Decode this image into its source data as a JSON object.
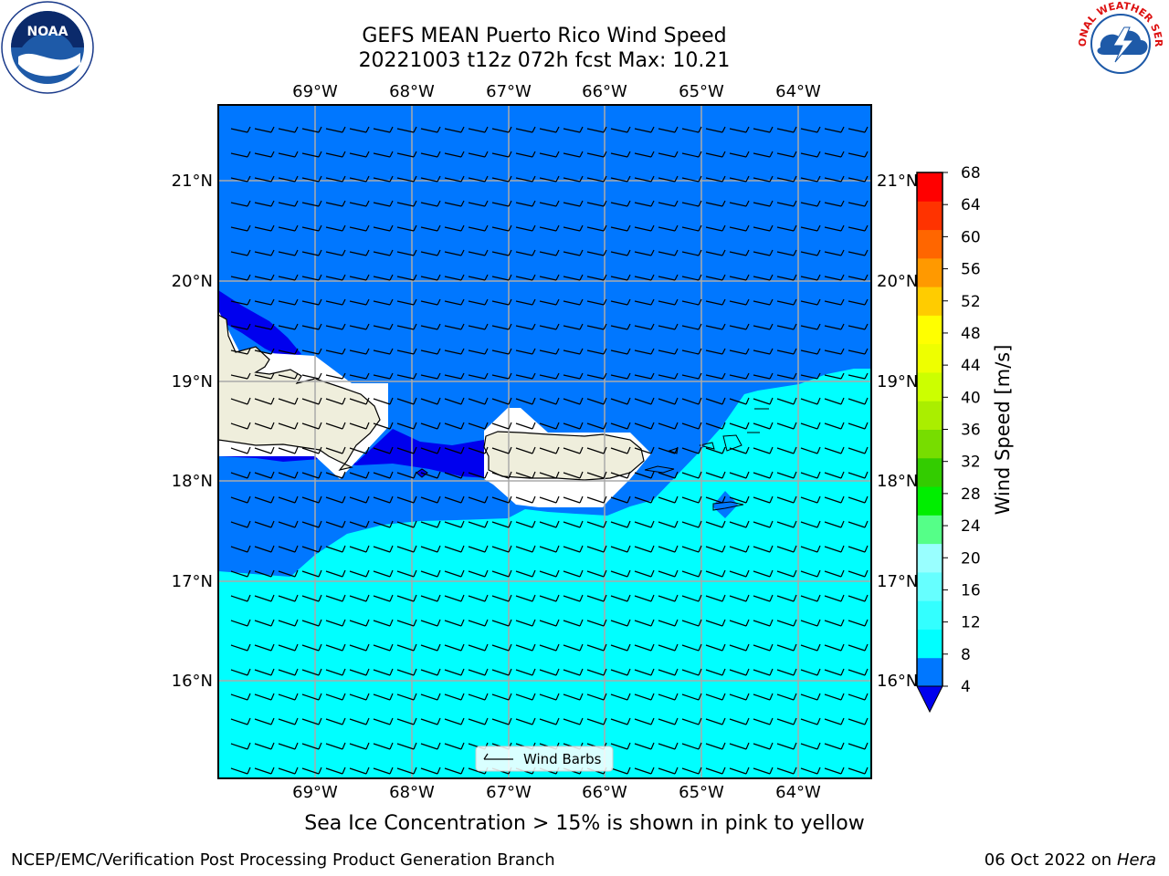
{
  "title": {
    "line1": "GEFS MEAN Puerto Rico Wind Speed",
    "line2": "20221003 t12z 072h fcst   Max: 10.21"
  },
  "caption": "Sea Ice Concentration > 15% is shown in pink to yellow",
  "footer": {
    "left": "NCEP/EMC/Verification Post Processing Product Generation Branch",
    "right_date": "06 Oct 2022 on ",
    "right_host": "Hera"
  },
  "map": {
    "lon_labels": [
      "69°W",
      "68°W",
      "67°W",
      "66°W",
      "65°W",
      "64°W"
    ],
    "lat_labels": [
      "21°N",
      "20°N",
      "19°N",
      "18°N",
      "17°N",
      "16°N"
    ],
    "legend_label": "Wind Barbs"
  },
  "colorbar": {
    "label": "Wind Speed [m/s]",
    "ticks": [
      "68",
      "64",
      "60",
      "56",
      "52",
      "48",
      "44",
      "40",
      "36",
      "32",
      "28",
      "24",
      "20",
      "16",
      "12",
      "8",
      "4"
    ],
    "colors_bottom_to_top": [
      "#0077ff",
      "#00ffff",
      "#33ffff",
      "#66ffff",
      "#99ffff",
      "#55ff88",
      "#00ee00",
      "#33cc00",
      "#77dd00",
      "#aaee00",
      "#ccff00",
      "#eeff00",
      "#ffff00",
      "#ffcc00",
      "#ff9900",
      "#ff6600",
      "#ff3300",
      "#ff0000"
    ],
    "arrow_color": "#0000ee"
  },
  "fill_colors": {
    "ocean_deep": "#0077ff",
    "ocean_light": "#00ffff",
    "calm": "#0000ee",
    "land": "#efeedc"
  },
  "logos": {
    "noaa_text": "NOAA",
    "nws_text": "NATIONAL WEATHER SERVICE"
  }
}
